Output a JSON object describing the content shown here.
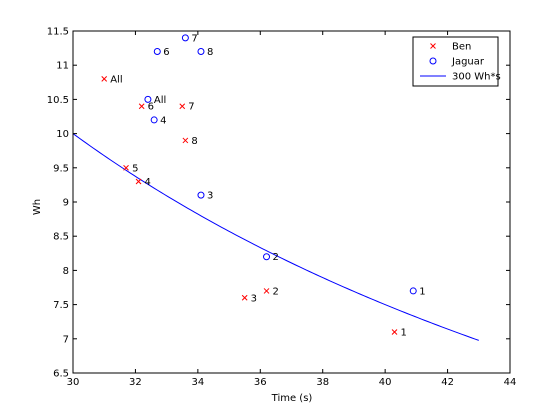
{
  "chart_data": {
    "type": "scatter",
    "title": "",
    "xlabel": "Time (s)",
    "ylabel": "Wh",
    "xlim": [
      30,
      44
    ],
    "ylim": [
      6.5,
      11.5
    ],
    "grid": false,
    "legend_position": "top-right",
    "xticks": [
      "30",
      "32",
      "34",
      "36",
      "38",
      "40",
      "42",
      "44"
    ],
    "yticks": [
      "6.5",
      "7",
      "7.5",
      "8",
      "8.5",
      "9",
      "9.5",
      "10",
      "10.5",
      "11",
      "11.5"
    ],
    "xtick_values": [
      30,
      32,
      34,
      36,
      38,
      40,
      42,
      44
    ],
    "ytick_values": [
      6.5,
      7,
      7.5,
      8,
      8.5,
      9,
      9.5,
      10,
      10.5,
      11,
      11.5
    ],
    "series": [
      {
        "name": "Ben",
        "marker": "x",
        "color": "#ff0000",
        "points": [
          {
            "x": 40.3,
            "y": 7.1,
            "label": "1"
          },
          {
            "x": 36.2,
            "y": 7.7,
            "label": "2"
          },
          {
            "x": 35.5,
            "y": 7.6,
            "label": "3"
          },
          {
            "x": 32.1,
            "y": 9.3,
            "label": "4"
          },
          {
            "x": 31.7,
            "y": 9.5,
            "label": "5"
          },
          {
            "x": 32.2,
            "y": 10.4,
            "label": "6"
          },
          {
            "x": 33.5,
            "y": 10.4,
            "label": "7"
          },
          {
            "x": 33.6,
            "y": 9.9,
            "label": "8"
          },
          {
            "x": 31.0,
            "y": 10.8,
            "label": "All"
          }
        ]
      },
      {
        "name": "Jaguar",
        "marker": "o",
        "color": "#0000ff",
        "points": [
          {
            "x": 40.9,
            "y": 7.7,
            "label": "1"
          },
          {
            "x": 36.2,
            "y": 8.2,
            "label": "2"
          },
          {
            "x": 34.1,
            "y": 9.1,
            "label": "3"
          },
          {
            "x": 32.6,
            "y": 10.2,
            "label": "4"
          },
          {
            "x": 32.7,
            "y": 11.2,
            "label": "6"
          },
          {
            "x": 33.6,
            "y": 11.4,
            "label": "7"
          },
          {
            "x": 34.1,
            "y": 11.2,
            "label": "8"
          },
          {
            "x": 32.4,
            "y": 10.5,
            "label": "All"
          }
        ]
      },
      {
        "name": "300 Wh*s",
        "type": "line",
        "color": "#0000ff",
        "function": "y = 300 / x",
        "x_range": [
          30,
          43
        ]
      }
    ]
  }
}
